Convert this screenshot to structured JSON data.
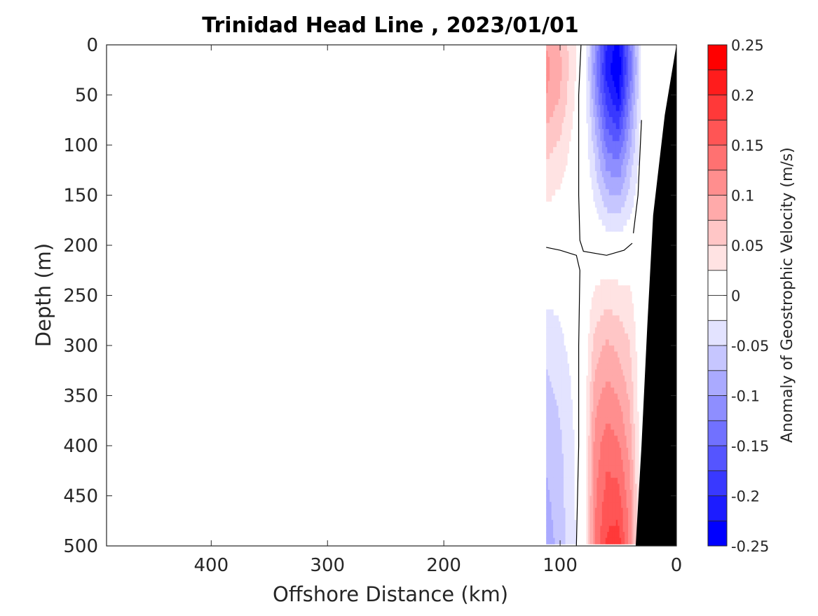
{
  "chart_data": {
    "type": "heatmap",
    "title": "Trinidad Head Line , 2023/01/01",
    "xlabel": "Offshore Distance (km)",
    "ylabel": "Depth (m)",
    "xlim": [
      490,
      0
    ],
    "ylim": [
      0,
      500
    ],
    "x_ticks": [
      {
        "value": 400,
        "label": "400"
      },
      {
        "value": 300,
        "label": "300"
      },
      {
        "value": 200,
        "label": "200"
      },
      {
        "value": 100,
        "label": "100"
      },
      {
        "value": 0,
        "label": "0"
      }
    ],
    "y_ticks": [
      {
        "value": 0,
        "label": "0"
      },
      {
        "value": 50,
        "label": "50"
      },
      {
        "value": 100,
        "label": "100"
      },
      {
        "value": 150,
        "label": "150"
      },
      {
        "value": 200,
        "label": "200"
      },
      {
        "value": 250,
        "label": "250"
      },
      {
        "value": 300,
        "label": "300"
      },
      {
        "value": 350,
        "label": "350"
      },
      {
        "value": 400,
        "label": "400"
      },
      {
        "value": 450,
        "label": "450"
      },
      {
        "value": 500,
        "label": "500"
      }
    ],
    "colorbar": {
      "label": "Anomaly of Geostrophic Velocity (m/s)",
      "limits": [
        -0.25,
        0.25
      ],
      "level_step": 0.025,
      "ticks": [
        {
          "value": 0.25,
          "label": "0.25"
        },
        {
          "value": 0.2,
          "label": "0.2"
        },
        {
          "value": 0.15,
          "label": "0.15"
        },
        {
          "value": 0.1,
          "label": "0.1"
        },
        {
          "value": 0.05,
          "label": "0.05"
        },
        {
          "value": 0,
          "label": "0"
        },
        {
          "value": -0.05,
          "label": "-0.05"
        },
        {
          "value": -0.1,
          "label": "-0.1"
        },
        {
          "value": -0.15,
          "label": "-0.15"
        },
        {
          "value": -0.2,
          "label": "-0.2"
        },
        {
          "value": -0.25,
          "label": "-0.25"
        }
      ],
      "colors": [
        "#0000ff",
        "#1c1cff",
        "#3939ff",
        "#5555ff",
        "#7171ff",
        "#8e8eff",
        "#aaaaff",
        "#c6c6ff",
        "#e3e3ff",
        "#ffffff",
        "#ffffff",
        "#ffe3e3",
        "#ffc6c6",
        "#ffaaaa",
        "#ff8e8e",
        "#ff7171",
        "#ff5555",
        "#ff3939",
        "#ff1c1c",
        "#ff0000"
      ]
    },
    "field": {
      "x_km": [
        112,
        100,
        88,
        80,
        70,
        60,
        50,
        40,
        30
      ],
      "depth_m": [
        0,
        25,
        50,
        75,
        100,
        150,
        200,
        250,
        300,
        350,
        400,
        450,
        500
      ],
      "velocity_anomaly_m_s": [
        [
          0.1,
          0.075,
          0.03,
          0.0,
          -0.1,
          -0.2,
          -0.24,
          -0.13,
          -0.02
        ],
        [
          0.11,
          0.08,
          0.03,
          0.0,
          -0.11,
          -0.21,
          -0.25,
          -0.14,
          -0.02
        ],
        [
          0.1,
          0.075,
          0.025,
          0.0,
          -0.1,
          -0.19,
          -0.23,
          -0.12,
          -0.02
        ],
        [
          0.08,
          0.06,
          0.02,
          0.0,
          -0.08,
          -0.16,
          -0.19,
          -0.1,
          -0.01
        ],
        [
          0.06,
          0.045,
          0.015,
          0.0,
          -0.06,
          -0.13,
          -0.15,
          -0.08,
          -0.01
        ],
        [
          0.03,
          0.02,
          0.005,
          0.0,
          -0.03,
          -0.07,
          -0.08,
          -0.04,
          0.0
        ],
        [
          0.0,
          0.0,
          0.0,
          0.0,
          0.0,
          -0.005,
          -0.005,
          0.0,
          0.0
        ],
        [
          -0.02,
          -0.02,
          -0.01,
          0.0,
          0.03,
          0.04,
          0.035,
          0.03,
          0.0
        ],
        [
          -0.04,
          -0.03,
          -0.015,
          0.0,
          0.06,
          0.08,
          0.07,
          0.05,
          0.0
        ],
        [
          -0.06,
          -0.045,
          -0.02,
          0.0,
          0.09,
          0.11,
          0.1,
          0.07,
          0.0
        ],
        [
          -0.07,
          -0.055,
          -0.025,
          0.0,
          0.11,
          0.14,
          0.13,
          0.09,
          0.0
        ],
        [
          -0.08,
          -0.06,
          -0.025,
          0.0,
          0.12,
          0.16,
          0.16,
          0.11,
          0.0
        ],
        [
          -0.09,
          -0.065,
          -0.03,
          0.0,
          0.13,
          0.18,
          0.19,
          0.12,
          0.0
        ]
      ]
    },
    "zero_contour": [
      [
        [
          82,
          0
        ],
        [
          84,
          50
        ],
        [
          84,
          150
        ],
        [
          83,
          195
        ],
        [
          80,
          206
        ],
        [
          60,
          210
        ],
        [
          45,
          205
        ],
        [
          38,
          198
        ]
      ],
      [
        [
          30,
          75
        ],
        [
          33,
          150
        ],
        [
          37,
          188
        ]
      ],
      [
        [
          112,
          202
        ],
        [
          100,
          205
        ],
        [
          86,
          210
        ],
        [
          83,
          225
        ],
        [
          84,
          300
        ],
        [
          84,
          400
        ],
        [
          86,
          500
        ]
      ]
    ],
    "bathymetry_km_by_depth": [
      [
        0,
        0
      ],
      [
        10,
        70
      ],
      [
        20,
        170
      ],
      [
        25,
        280
      ],
      [
        30,
        400
      ],
      [
        35,
        500
      ]
    ]
  }
}
